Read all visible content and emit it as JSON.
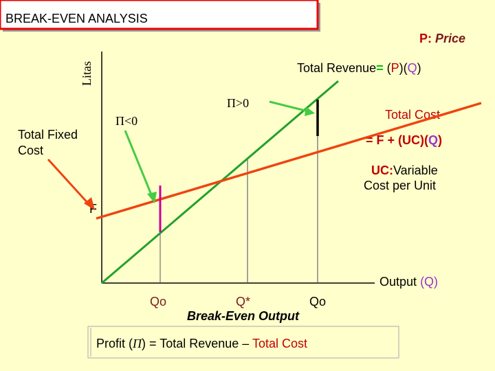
{
  "header": {
    "title": "BREAK-EVEN ANALYSIS"
  },
  "price_note": {
    "symbol": "P:",
    "label": "Price"
  },
  "y_axis_label": "Litas",
  "total_revenue": {
    "name": "Total Revenue",
    "equals": "=",
    "open_p": "(",
    "p": "P",
    "mid": ")(",
    "q": "Q",
    "close": ")"
  },
  "profit_positive": "Π>0",
  "profit_negative": "Π<0",
  "total_cost": {
    "name": "Total Cost",
    "formula": "= F  + (UC)(",
    "q": "Q",
    "close": ")"
  },
  "total_fixed_cost": {
    "line1": "Total Fixed",
    "line2": "Cost"
  },
  "uc_note": {
    "line1": "UC:Variable",
    "line2": "Cost per Unit"
  },
  "fixed_label": "F",
  "x_axis_label": {
    "name": "Output",
    "q": "(Q)"
  },
  "points": {
    "q_low": "Qo",
    "q_star": "Q*",
    "q_high": "Qo",
    "break_even": "Break-Even Output"
  },
  "profit_formula": {
    "lead": "Profit (",
    "pi": "Π",
    "mid": ") = Total Revenue – ",
    "cost": "Total Cost"
  }
}
